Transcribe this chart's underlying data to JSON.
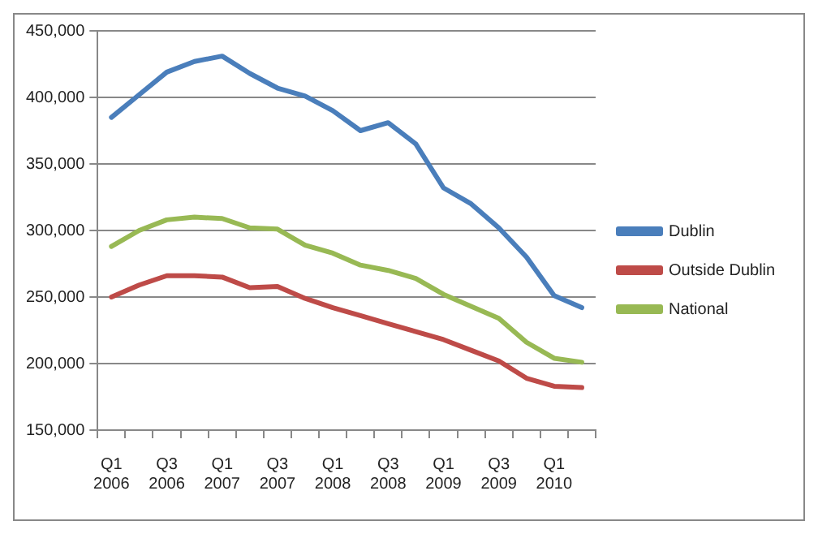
{
  "chart_data": {
    "type": "line",
    "categories": [
      "Q1 2006",
      null,
      "Q3 2006",
      null,
      "Q1 2007",
      null,
      "Q3 2007",
      null,
      "Q1 2008",
      null,
      "Q3 2008",
      null,
      "Q1 2009",
      null,
      "Q3 2009",
      null,
      "Q1 2010",
      null
    ],
    "series": [
      {
        "name": "Dublin",
        "color": "#4a7ebb",
        "values": [
          385000,
          402000,
          419000,
          427000,
          431000,
          418000,
          407000,
          401000,
          390000,
          375000,
          381000,
          365000,
          332000,
          320000,
          302000,
          280000,
          251000,
          242000
        ]
      },
      {
        "name": "Outside Dublin",
        "color": "#be4b48",
        "values": [
          250000,
          259000,
          266000,
          266000,
          265000,
          257000,
          258000,
          249000,
          242000,
          236000,
          230000,
          224000,
          218000,
          210000,
          202000,
          189000,
          183000,
          182000
        ]
      },
      {
        "name": "National",
        "color": "#98b954",
        "values": [
          288000,
          300000,
          308000,
          310000,
          309000,
          302000,
          301000,
          289000,
          283000,
          274000,
          270000,
          264000,
          252000,
          243000,
          234000,
          216000,
          204000,
          201000
        ]
      }
    ],
    "ylim": [
      150000,
      450000
    ],
    "yticks": [
      {
        "value": 150000,
        "label": "150,000"
      },
      {
        "value": 200000,
        "label": "200,000"
      },
      {
        "value": 250000,
        "label": "250,000"
      },
      {
        "value": 300000,
        "label": "300,000"
      },
      {
        "value": 350000,
        "label": "350,000"
      },
      {
        "value": 400000,
        "label": "400,000"
      },
      {
        "value": 450000,
        "label": "450,000"
      }
    ],
    "grid": "y",
    "legend": "right",
    "marker": "none",
    "line_style": "solid"
  }
}
